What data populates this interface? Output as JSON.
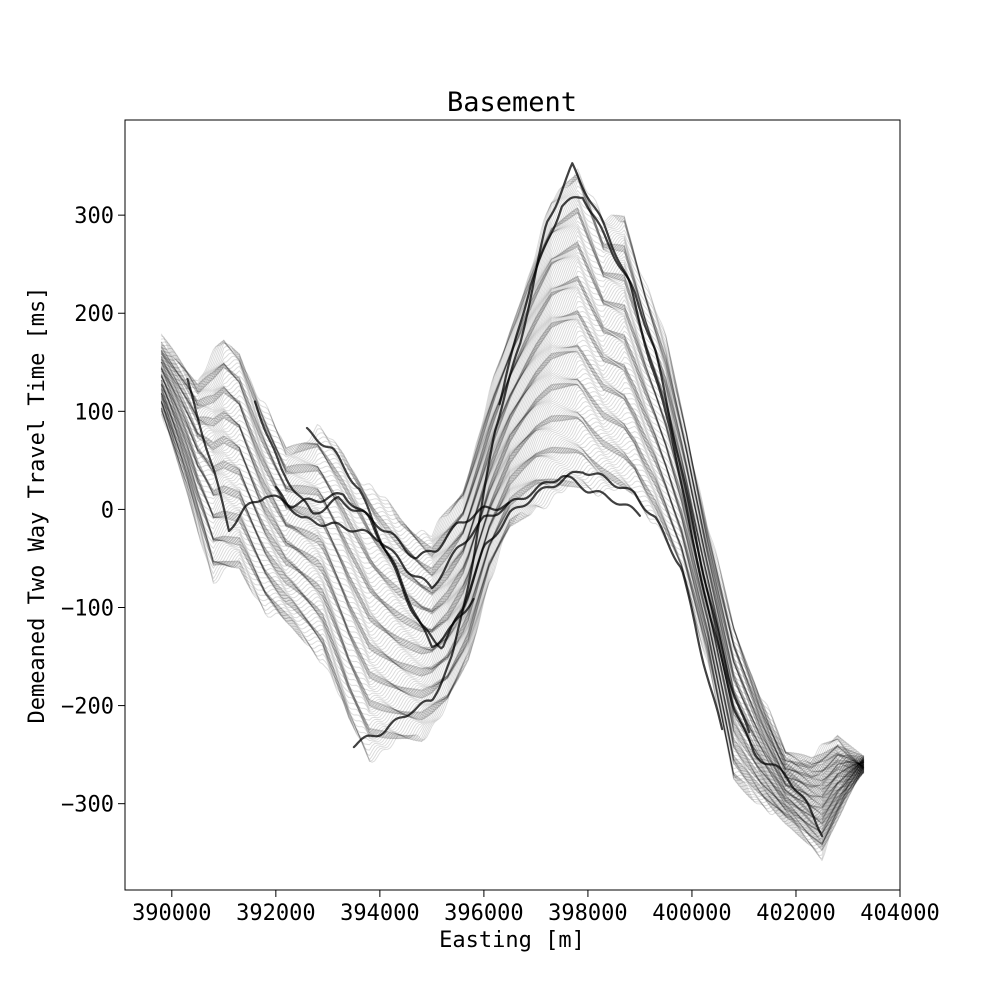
{
  "chart_data": {
    "type": "line",
    "title": "Basement",
    "xlabel": "Easting [m]",
    "ylabel": "Demeaned Two Way Travel Time [ms]",
    "xlim": [
      389100,
      404000
    ],
    "ylim": [
      -388,
      397
    ],
    "xticks": [
      390000,
      392000,
      394000,
      396000,
      398000,
      400000,
      402000,
      404000
    ],
    "xtick_labels": [
      "390000",
      "392000",
      "394000",
      "396000",
      "398000",
      "400000",
      "402000",
      "404000"
    ],
    "yticks": [
      -300,
      -200,
      -100,
      0,
      100,
      200,
      300
    ],
    "ytick_labels": [
      "−300",
      "−200",
      "−100",
      "0",
      "100",
      "200",
      "300"
    ],
    "grid": false,
    "legend": "none",
    "line_color": "#000000",
    "trace_count": 160,
    "envelopes": {
      "upper": [
        [
          389800,
          170
        ],
        [
          390500,
          130
        ],
        [
          391000,
          170
        ],
        [
          391300,
          160
        ],
        [
          391700,
          110
        ],
        [
          392200,
          60
        ],
        [
          392800,
          80
        ],
        [
          393300,
          55
        ],
        [
          393900,
          15
        ],
        [
          394400,
          -10
        ],
        [
          395000,
          -30
        ],
        [
          395600,
          20
        ],
        [
          396200,
          130
        ],
        [
          396800,
          230
        ],
        [
          397300,
          310
        ],
        [
          397800,
          350
        ],
        [
          398300,
          290
        ],
        [
          398700,
          300
        ],
        [
          399100,
          230
        ],
        [
          399500,
          170
        ],
        [
          399900,
          80
        ],
        [
          400300,
          -20
        ],
        [
          400800,
          -120
        ],
        [
          401300,
          -190
        ],
        [
          401800,
          -250
        ],
        [
          402300,
          -255
        ],
        [
          402800,
          -235
        ],
        [
          403300,
          -260
        ]
      ],
      "lower": [
        [
          389800,
          100
        ],
        [
          390300,
          20
        ],
        [
          390800,
          -70
        ],
        [
          391300,
          -60
        ],
        [
          391800,
          -100
        ],
        [
          392300,
          -120
        ],
        [
          392900,
          -150
        ],
        [
          393400,
          -215
        ],
        [
          393800,
          -250
        ],
        [
          394300,
          -240
        ],
        [
          394800,
          -230
        ],
        [
          395300,
          -200
        ],
        [
          395700,
          -150
        ],
        [
          396100,
          -70
        ],
        [
          396500,
          -20
        ],
        [
          397000,
          5
        ],
        [
          397500,
          15
        ],
        [
          397900,
          25
        ],
        [
          398400,
          20
        ],
        [
          398900,
          15
        ],
        [
          399300,
          -10
        ],
        [
          399800,
          -60
        ],
        [
          400300,
          -150
        ],
        [
          400800,
          -275
        ],
        [
          401400,
          -300
        ],
        [
          401900,
          -320
        ],
        [
          402500,
          -350
        ],
        [
          403000,
          -290
        ],
        [
          403300,
          -260
        ]
      ]
    },
    "dark_traces": [
      [
        [
          390300,
          130
        ],
        [
          390800,
          40
        ],
        [
          391100,
          -20
        ],
        [
          391400,
          0
        ],
        [
          391800,
          15
        ],
        [
          392300,
          5
        ],
        [
          392800,
          10
        ],
        [
          393300,
          15
        ],
        [
          393800,
          -10
        ],
        [
          394300,
          -60
        ],
        [
          394800,
          -120
        ],
        [
          395200,
          -140
        ],
        [
          395600,
          -100
        ],
        [
          396000,
          -40
        ],
        [
          396500,
          -5
        ],
        [
          397000,
          15
        ],
        [
          397500,
          30
        ],
        [
          397900,
          40
        ],
        [
          398400,
          30
        ],
        [
          398900,
          15
        ],
        [
          399300,
          -10
        ],
        [
          399800,
          -60
        ],
        [
          400200,
          -150
        ],
        [
          400600,
          -230
        ]
      ],
      [
        [
          391600,
          110
        ],
        [
          392100,
          40
        ],
        [
          392700,
          -5
        ],
        [
          393200,
          10
        ],
        [
          393700,
          -5
        ],
        [
          394200,
          -25
        ],
        [
          394700,
          -50
        ],
        [
          395100,
          -40
        ],
        [
          395500,
          -15
        ],
        [
          396000,
          0
        ],
        [
          396500,
          5
        ],
        [
          397000,
          20
        ],
        [
          397500,
          35
        ],
        [
          398000,
          20
        ],
        [
          398500,
          10
        ],
        [
          399000,
          -5
        ]
      ],
      [
        [
          392600,
          80
        ],
        [
          393100,
          60
        ],
        [
          393600,
          20
        ],
        [
          394100,
          -40
        ],
        [
          394600,
          -100
        ],
        [
          395000,
          -140
        ],
        [
          395400,
          -120
        ],
        [
          395800,
          -90
        ]
      ],
      [
        [
          393500,
          -240
        ],
        [
          394100,
          -225
        ],
        [
          394600,
          -205
        ],
        [
          395000,
          -195
        ],
        [
          395400,
          -150
        ],
        [
          395800,
          -50
        ],
        [
          396200,
          80
        ],
        [
          396700,
          170
        ],
        [
          397200,
          290
        ],
        [
          397700,
          350
        ],
        [
          398300,
          290
        ],
        [
          398800,
          230
        ],
        [
          399200,
          150
        ],
        [
          399600,
          80
        ],
        [
          400000,
          -30
        ],
        [
          400400,
          -120
        ],
        [
          400800,
          -200
        ],
        [
          401200,
          -250
        ],
        [
          401800,
          -270
        ],
        [
          402200,
          -300
        ],
        [
          402500,
          -330
        ]
      ],
      [
        [
          392000,
          20
        ],
        [
          392500,
          -10
        ],
        [
          393000,
          -15
        ],
        [
          393500,
          -20
        ],
        [
          394000,
          -30
        ],
        [
          394500,
          -60
        ],
        [
          395000,
          -80
        ],
        [
          395500,
          -40
        ],
        [
          396000,
          -10
        ],
        [
          396500,
          5
        ]
      ],
      [
        [
          396300,
          110
        ],
        [
          396900,
          230
        ],
        [
          397500,
          310
        ],
        [
          397900,
          320
        ],
        [
          398400,
          270
        ],
        [
          398900,
          220
        ],
        [
          399300,
          160
        ],
        [
          399800,
          40
        ],
        [
          400200,
          -60
        ],
        [
          400700,
          -170
        ],
        [
          401100,
          -230
        ]
      ]
    ]
  }
}
